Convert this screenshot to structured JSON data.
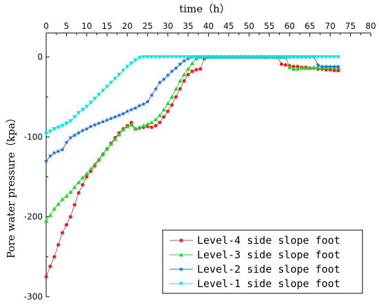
{
  "chart_data": {
    "type": "line",
    "xlabel": "time（h）",
    "ylabel": "Pore water pressure（kpa）",
    "x_axis_position": "top",
    "xlim": [
      0,
      80
    ],
    "ylim": [
      -300,
      30
    ],
    "xticks": [
      0,
      5,
      10,
      15,
      20,
      25,
      30,
      35,
      40,
      45,
      50,
      55,
      60,
      65,
      70,
      75,
      80
    ],
    "yticks": [
      0,
      -100,
      -200,
      -300
    ],
    "grid": false,
    "legend_position": "bottom-right",
    "series": [
      {
        "name": "Level-4 side slope foot",
        "color": "#e8231f",
        "line_color": "#8c6a6a",
        "marker": "circle",
        "x": [
          0,
          1,
          2,
          3,
          4,
          5,
          6,
          7,
          8,
          9,
          10,
          11,
          12,
          13,
          14,
          15,
          16,
          17,
          18,
          19,
          20,
          21,
          22,
          23,
          24,
          25,
          26,
          27,
          28,
          29,
          30,
          31,
          32,
          33,
          34,
          35,
          36,
          37,
          38,
          39,
          40,
          41,
          42,
          43,
          44,
          45,
          46,
          47,
          48,
          49,
          50,
          51,
          52,
          53,
          54,
          55,
          56,
          57,
          58,
          59,
          60,
          61,
          62,
          63,
          64,
          65,
          66,
          67,
          68,
          69,
          70,
          71,
          72
        ],
        "y": [
          -275,
          -262,
          -250,
          -235,
          -220,
          -210,
          -200,
          -185,
          -170,
          -160,
          -150,
          -143,
          -136,
          -129,
          -122,
          -115,
          -108,
          -101,
          -95,
          -90,
          -86,
          -82,
          -90,
          -89,
          -88,
          -87,
          -88,
          -86,
          -82,
          -75,
          -68,
          -60,
          -50,
          -40,
          -30,
          -22,
          -18,
          -16,
          -15,
          -2,
          0,
          0,
          0,
          0,
          0,
          0,
          0,
          0,
          0,
          0,
          0,
          0,
          0,
          0,
          0,
          0,
          0,
          0,
          -9,
          -10,
          -11,
          -12,
          -12,
          -13,
          -13,
          -14,
          -14,
          -15,
          -15,
          -16,
          -16,
          -17,
          -17
        ]
      },
      {
        "name": "Level-3 side slope foot",
        "color": "#2bd12b",
        "line_color": "#2bd12b",
        "marker": "triangle-up",
        "x": [
          0,
          1,
          2,
          3,
          4,
          5,
          6,
          7,
          8,
          9,
          10,
          11,
          12,
          13,
          14,
          15,
          16,
          17,
          18,
          19,
          20,
          21,
          22,
          23,
          24,
          25,
          26,
          27,
          28,
          29,
          30,
          31,
          32,
          33,
          34,
          35,
          36,
          37,
          38,
          39,
          40,
          41,
          42,
          43,
          44,
          45,
          46,
          47,
          48,
          49,
          50,
          51,
          52,
          53,
          54,
          55,
          56,
          57,
          58,
          59,
          60,
          61,
          62,
          63,
          64,
          65,
          66,
          67,
          68,
          69,
          70,
          71,
          72
        ],
        "y": [
          -205,
          -198,
          -190,
          -184,
          -178,
          -174,
          -169,
          -163,
          -157,
          -151,
          -146,
          -140,
          -134,
          -128,
          -121,
          -115,
          -109,
          -103,
          -97,
          -91,
          -87,
          -85,
          -90,
          -88,
          -86,
          -84,
          -82,
          -78,
          -73,
          -66,
          -58,
          -50,
          -40,
          -30,
          -22,
          -15,
          -8,
          -2,
          0,
          0,
          0,
          0,
          0,
          0,
          0,
          0,
          0,
          0,
          0,
          0,
          0,
          0,
          0,
          0,
          0,
          0,
          0,
          0,
          0,
          0,
          -13,
          -15,
          -15,
          -14,
          -14,
          -14,
          -13,
          -13,
          -13,
          -13,
          -13,
          -13,
          -13
        ]
      },
      {
        "name": "Level-2 side slope foot",
        "color": "#1a6fd6",
        "line_color": "#1a6fd6",
        "marker": "star",
        "x": [
          0,
          1,
          2,
          3,
          4,
          5,
          6,
          7,
          8,
          9,
          10,
          11,
          12,
          13,
          14,
          15,
          16,
          17,
          18,
          19,
          20,
          21,
          22,
          23,
          24,
          25,
          26,
          27,
          28,
          29,
          30,
          31,
          32,
          33,
          34,
          35,
          36,
          37,
          38,
          39,
          40,
          41,
          42,
          43,
          44,
          45,
          46,
          47,
          48,
          49,
          50,
          51,
          52,
          53,
          54,
          55,
          56,
          57,
          58,
          59,
          60,
          61,
          62,
          63,
          64,
          65,
          66,
          67,
          68,
          69,
          70,
          71,
          72
        ],
        "y": [
          -130,
          -124,
          -120,
          -118,
          -116,
          -107,
          -101,
          -98,
          -95,
          -92,
          -90,
          -87,
          -85,
          -83,
          -81,
          -79,
          -77,
          -75,
          -73,
          -71,
          -68,
          -66,
          -64,
          -61,
          -59,
          -56,
          -48,
          -40,
          -32,
          -28,
          -23,
          -18,
          -14,
          -9,
          -5,
          -2,
          0,
          0,
          0,
          0,
          0,
          0,
          0,
          0,
          0,
          0,
          0,
          0,
          0,
          0,
          0,
          0,
          0,
          0,
          0,
          0,
          0,
          0,
          0,
          0,
          0,
          0,
          0,
          0,
          0,
          0,
          0,
          -10,
          -12,
          -12,
          -12,
          -12,
          -12
        ]
      },
      {
        "name": "Level-1 side slope foot",
        "color": "#00e6e6",
        "line_color": "#00e6e6",
        "marker": "triangle-down",
        "x": [
          0,
          1,
          2,
          3,
          4,
          5,
          6,
          7,
          8,
          9,
          10,
          11,
          12,
          13,
          14,
          15,
          16,
          17,
          18,
          19,
          20,
          21,
          22,
          23,
          24,
          25,
          26,
          27,
          28,
          29,
          30,
          31,
          32,
          33,
          34,
          35,
          36,
          37,
          38,
          39,
          40,
          41,
          42,
          43,
          44,
          45,
          46,
          47,
          48,
          49,
          50,
          51,
          52,
          53,
          54,
          55,
          56,
          57,
          58,
          59,
          60,
          61,
          62,
          63,
          64,
          65,
          66,
          67,
          68,
          69,
          70,
          71,
          72
        ],
        "y": [
          -96,
          -93,
          -90,
          -88,
          -86,
          -83,
          -80,
          -75,
          -70,
          -66,
          -62,
          -57,
          -52,
          -47,
          -42,
          -37,
          -32,
          -27,
          -22,
          -17,
          -12,
          -8,
          -4,
          -1,
          0,
          0,
          0,
          0,
          0,
          0,
          0,
          0,
          0,
          0,
          0,
          0,
          0,
          0,
          0,
          0,
          0,
          0,
          0,
          0,
          0,
          0,
          0,
          0,
          0,
          0,
          0,
          0,
          0,
          0,
          0,
          0,
          0,
          0,
          0,
          0,
          0,
          0,
          0,
          0,
          0,
          0,
          0,
          0,
          0,
          0,
          0,
          0,
          0
        ]
      }
    ]
  }
}
